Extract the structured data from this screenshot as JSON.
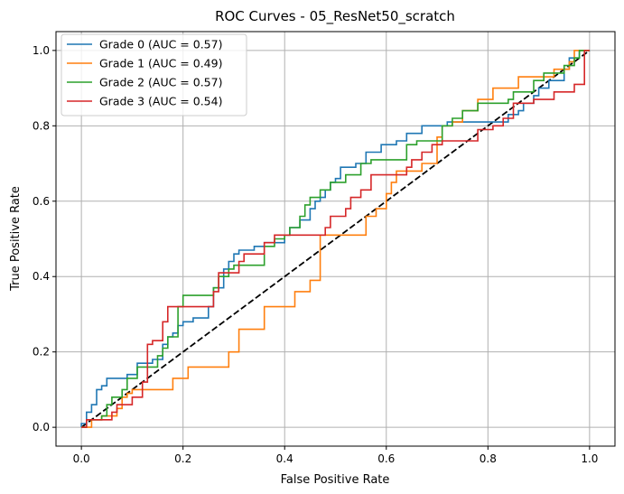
{
  "chart_data": {
    "type": "line",
    "title": "ROC Curves - 05_ResNet50_scratch",
    "xlabel": "False Positive Rate",
    "ylabel": "True Positive Rate",
    "xlim": [
      -0.05,
      1.05
    ],
    "ylim": [
      -0.05,
      1.05
    ],
    "xticks": [
      "0.0",
      "0.2",
      "0.4",
      "0.6",
      "0.8",
      "1.0"
    ],
    "yticks": [
      "0.0",
      "0.2",
      "0.4",
      "0.6",
      "0.8",
      "1.0"
    ],
    "grid": true,
    "legend_position": "top-left",
    "diagonal": {
      "x": [
        0,
        1
      ],
      "y": [
        0,
        1
      ],
      "color": "#000000",
      "style": "dashed"
    },
    "series": [
      {
        "name": "Grade 0 (AUC = 0.57)",
        "color": "#1f77b4",
        "x": [
          0,
          0,
          0.01,
          0.01,
          0.02,
          0.02,
          0.03,
          0.03,
          0.04,
          0.04,
          0.05,
          0.05,
          0.09,
          0.09,
          0.11,
          0.11,
          0.14,
          0.14,
          0.16,
          0.16,
          0.17,
          0.17,
          0.18,
          0.18,
          0.19,
          0.19,
          0.2,
          0.2,
          0.22,
          0.22,
          0.25,
          0.25,
          0.26,
          0.26,
          0.28,
          0.28,
          0.29,
          0.29,
          0.3,
          0.3,
          0.31,
          0.31,
          0.34,
          0.34,
          0.36,
          0.36,
          0.4,
          0.4,
          0.41,
          0.41,
          0.43,
          0.43,
          0.45,
          0.45,
          0.46,
          0.46,
          0.47,
          0.47,
          0.48,
          0.48,
          0.49,
          0.49,
          0.5,
          0.5,
          0.51,
          0.51,
          0.54,
          0.54,
          0.56,
          0.56,
          0.59,
          0.59,
          0.62,
          0.62,
          0.64,
          0.64,
          0.67,
          0.67,
          0.72,
          0.72,
          0.84,
          0.84,
          0.86,
          0.86,
          0.87,
          0.87,
          0.89,
          0.89,
          0.9,
          0.9,
          0.92,
          0.92,
          0.95,
          0.95,
          0.96,
          0.96,
          0.98,
          0.98,
          1
        ],
        "y": [
          0,
          0.01,
          0.01,
          0.04,
          0.04,
          0.06,
          0.06,
          0.1,
          0.1,
          0.11,
          0.11,
          0.13,
          0.13,
          0.14,
          0.14,
          0.17,
          0.17,
          0.18,
          0.18,
          0.22,
          0.22,
          0.24,
          0.24,
          0.25,
          0.25,
          0.27,
          0.27,
          0.28,
          0.28,
          0.29,
          0.29,
          0.32,
          0.32,
          0.37,
          0.37,
          0.42,
          0.42,
          0.44,
          0.44,
          0.46,
          0.46,
          0.47,
          0.47,
          0.48,
          0.48,
          0.49,
          0.49,
          0.51,
          0.51,
          0.53,
          0.53,
          0.55,
          0.55,
          0.58,
          0.58,
          0.6,
          0.6,
          0.61,
          0.61,
          0.63,
          0.63,
          0.65,
          0.65,
          0.66,
          0.66,
          0.69,
          0.69,
          0.7,
          0.7,
          0.73,
          0.73,
          0.75,
          0.75,
          0.76,
          0.76,
          0.78,
          0.78,
          0.8,
          0.8,
          0.81,
          0.81,
          0.83,
          0.83,
          0.84,
          0.84,
          0.86,
          0.86,
          0.88,
          0.88,
          0.9,
          0.9,
          0.92,
          0.92,
          0.95,
          0.95,
          0.98,
          0.98,
          1,
          1
        ]
      },
      {
        "name": "Grade 1 (AUC = 0.49)",
        "color": "#ff7f0e",
        "x": [
          0,
          0.02,
          0.02,
          0.04,
          0.04,
          0.07,
          0.07,
          0.08,
          0.08,
          0.09,
          0.09,
          0.1,
          0.1,
          0.18,
          0.18,
          0.21,
          0.21,
          0.29,
          0.29,
          0.31,
          0.31,
          0.36,
          0.36,
          0.42,
          0.42,
          0.45,
          0.45,
          0.47,
          0.47,
          0.56,
          0.56,
          0.58,
          0.58,
          0.6,
          0.6,
          0.61,
          0.61,
          0.62,
          0.62,
          0.67,
          0.67,
          0.7,
          0.7,
          0.71,
          0.71,
          0.73,
          0.73,
          0.75,
          0.75,
          0.78,
          0.78,
          0.81,
          0.81,
          0.86,
          0.86,
          0.93,
          0.93,
          0.96,
          0.96,
          0.97,
          0.97,
          1
        ],
        "y": [
          0,
          0,
          0.02,
          0.02,
          0.03,
          0.03,
          0.05,
          0.05,
          0.08,
          0.08,
          0.09,
          0.09,
          0.1,
          0.1,
          0.13,
          0.13,
          0.16,
          0.16,
          0.2,
          0.2,
          0.26,
          0.26,
          0.32,
          0.32,
          0.36,
          0.36,
          0.39,
          0.39,
          0.51,
          0.51,
          0.56,
          0.56,
          0.58,
          0.58,
          0.62,
          0.62,
          0.65,
          0.65,
          0.68,
          0.68,
          0.7,
          0.7,
          0.77,
          0.77,
          0.8,
          0.8,
          0.81,
          0.81,
          0.84,
          0.84,
          0.87,
          0.87,
          0.9,
          0.9,
          0.93,
          0.93,
          0.95,
          0.95,
          0.97,
          0.97,
          1,
          1
        ]
      },
      {
        "name": "Grade 2 (AUC = 0.57)",
        "color": "#2ca02c",
        "x": [
          0,
          0.01,
          0.01,
          0.04,
          0.04,
          0.05,
          0.05,
          0.06,
          0.06,
          0.08,
          0.08,
          0.09,
          0.09,
          0.11,
          0.11,
          0.15,
          0.15,
          0.16,
          0.16,
          0.17,
          0.17,
          0.19,
          0.19,
          0.2,
          0.2,
          0.26,
          0.26,
          0.27,
          0.27,
          0.29,
          0.29,
          0.3,
          0.3,
          0.36,
          0.36,
          0.38,
          0.38,
          0.4,
          0.4,
          0.41,
          0.41,
          0.43,
          0.43,
          0.44,
          0.44,
          0.45,
          0.45,
          0.47,
          0.47,
          0.49,
          0.49,
          0.52,
          0.52,
          0.55,
          0.55,
          0.57,
          0.57,
          0.64,
          0.64,
          0.66,
          0.66,
          0.71,
          0.71,
          0.73,
          0.73,
          0.75,
          0.75,
          0.78,
          0.78,
          0.84,
          0.84,
          0.85,
          0.85,
          0.89,
          0.89,
          0.91,
          0.91,
          0.95,
          0.95,
          0.97,
          0.97,
          0.98,
          0.98,
          1
        ],
        "y": [
          0,
          0,
          0.02,
          0.02,
          0.03,
          0.03,
          0.06,
          0.06,
          0.08,
          0.08,
          0.1,
          0.1,
          0.13,
          0.13,
          0.16,
          0.16,
          0.19,
          0.19,
          0.21,
          0.21,
          0.24,
          0.24,
          0.32,
          0.32,
          0.35,
          0.35,
          0.37,
          0.37,
          0.4,
          0.4,
          0.42,
          0.42,
          0.43,
          0.43,
          0.48,
          0.48,
          0.5,
          0.5,
          0.51,
          0.51,
          0.53,
          0.53,
          0.56,
          0.56,
          0.59,
          0.59,
          0.61,
          0.61,
          0.63,
          0.63,
          0.65,
          0.65,
          0.67,
          0.67,
          0.7,
          0.7,
          0.71,
          0.71,
          0.75,
          0.75,
          0.76,
          0.76,
          0.8,
          0.8,
          0.82,
          0.82,
          0.84,
          0.84,
          0.86,
          0.86,
          0.87,
          0.87,
          0.89,
          0.89,
          0.92,
          0.92,
          0.94,
          0.94,
          0.96,
          0.96,
          0.98,
          0.98,
          1,
          1
        ]
      },
      {
        "name": "Grade 3 (AUC = 0.54)",
        "color": "#d62728",
        "x": [
          0,
          0.01,
          0.01,
          0.06,
          0.06,
          0.07,
          0.07,
          0.1,
          0.1,
          0.12,
          0.12,
          0.13,
          0.13,
          0.14,
          0.14,
          0.16,
          0.16,
          0.17,
          0.17,
          0.26,
          0.26,
          0.27,
          0.27,
          0.31,
          0.31,
          0.32,
          0.32,
          0.36,
          0.36,
          0.38,
          0.38,
          0.48,
          0.48,
          0.49,
          0.49,
          0.52,
          0.52,
          0.53,
          0.53,
          0.55,
          0.55,
          0.57,
          0.57,
          0.64,
          0.64,
          0.65,
          0.65,
          0.67,
          0.67,
          0.69,
          0.69,
          0.71,
          0.71,
          0.78,
          0.78,
          0.81,
          0.81,
          0.83,
          0.83,
          0.85,
          0.85,
          0.89,
          0.89,
          0.93,
          0.93,
          0.97,
          0.97,
          0.99,
          0.99,
          1
        ],
        "y": [
          0,
          0,
          0.02,
          0.02,
          0.04,
          0.04,
          0.06,
          0.06,
          0.08,
          0.08,
          0.12,
          0.12,
          0.22,
          0.22,
          0.23,
          0.23,
          0.28,
          0.28,
          0.32,
          0.32,
          0.36,
          0.36,
          0.41,
          0.41,
          0.44,
          0.44,
          0.46,
          0.46,
          0.49,
          0.49,
          0.51,
          0.51,
          0.53,
          0.53,
          0.56,
          0.56,
          0.58,
          0.58,
          0.61,
          0.61,
          0.63,
          0.63,
          0.67,
          0.67,
          0.69,
          0.69,
          0.71,
          0.71,
          0.73,
          0.73,
          0.75,
          0.75,
          0.76,
          0.76,
          0.79,
          0.79,
          0.8,
          0.8,
          0.82,
          0.82,
          0.86,
          0.86,
          0.87,
          0.87,
          0.89,
          0.89,
          0.91,
          0.91,
          1,
          1
        ]
      }
    ]
  }
}
